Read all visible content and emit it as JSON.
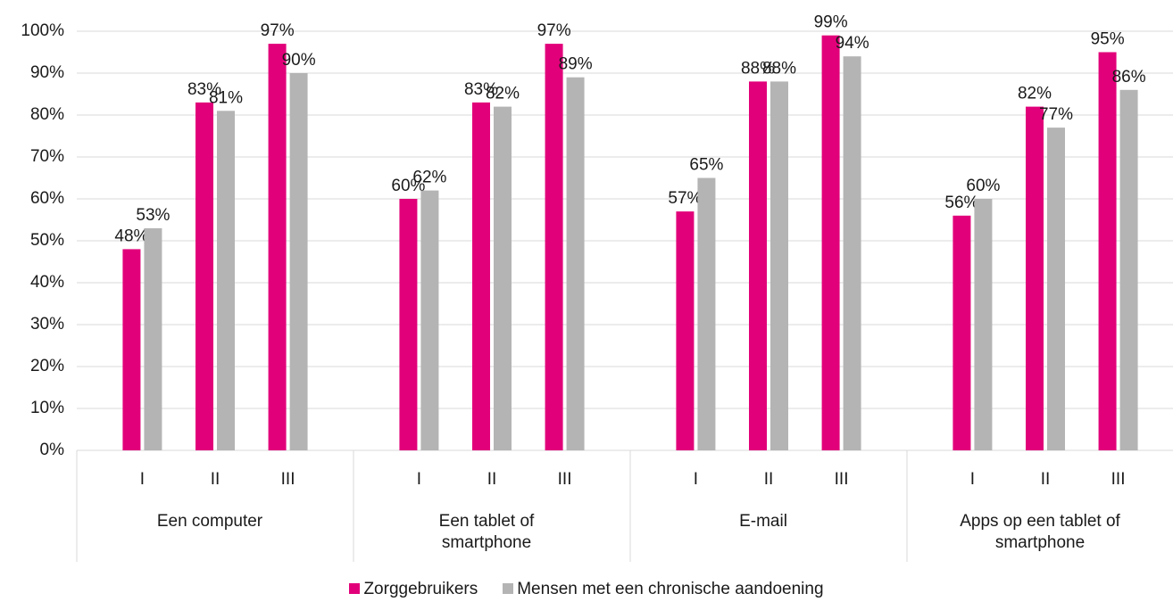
{
  "chart_data": {
    "type": "bar",
    "categories": [
      "I",
      "II",
      "III",
      "I",
      "II",
      "III",
      "I",
      "II",
      "III",
      "I",
      "II",
      "III"
    ],
    "groups": [
      "Een computer",
      "Een tablet of smartphone",
      "E-mail",
      "Apps op een tablet of smartphone"
    ],
    "series": [
      {
        "name": "Zorggebruikers",
        "color": "#e2007a",
        "values": [
          48,
          83,
          97,
          60,
          83,
          97,
          57,
          88,
          99,
          56,
          82,
          95
        ],
        "value_labels": [
          "48%",
          "83%",
          "97%",
          "60%",
          "83%",
          "97%",
          "57%",
          "88%",
          "99%",
          "56%",
          "82%",
          "95%"
        ]
      },
      {
        "name": "Mensen met een chronische aandoening",
        "color": "#b4b4b4",
        "values": [
          53,
          81,
          90,
          62,
          82,
          89,
          65,
          88,
          94,
          60,
          77,
          86
        ],
        "value_labels": [
          "53%",
          "81%",
          "90%",
          "62%",
          "82%",
          "89%",
          "65%",
          "88%",
          "94%",
          "60%",
          "77%",
          "86%"
        ]
      }
    ],
    "ylim": [
      0,
      100
    ],
    "yticks": [
      {
        "value": 0,
        "label": "0%"
      },
      {
        "value": 10,
        "label": "10%"
      },
      {
        "value": 20,
        "label": "20%"
      },
      {
        "value": 30,
        "label": "30%"
      },
      {
        "value": 40,
        "label": "40%"
      },
      {
        "value": 50,
        "label": "50%"
      },
      {
        "value": 60,
        "label": "60%"
      },
      {
        "value": 70,
        "label": "70%"
      },
      {
        "value": 80,
        "label": "80%"
      },
      {
        "value": 90,
        "label": "90%"
      },
      {
        "value": 100,
        "label": "100%"
      }
    ],
    "grid": true,
    "legend": "bottom"
  }
}
